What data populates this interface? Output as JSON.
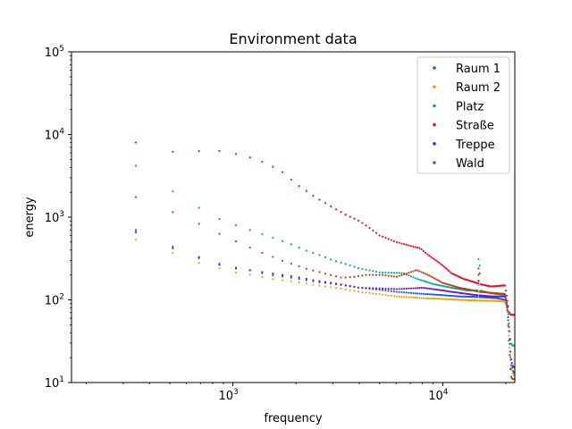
{
  "chart_data": {
    "type": "scatter",
    "title": "Environment data",
    "xlabel": "frequency",
    "ylabel": "energy",
    "xscale": "log",
    "yscale": "log",
    "xlim": [
      170,
      22050
    ],
    "ylim": [
      10,
      100000
    ],
    "xticks": [
      {
        "value": 1000,
        "base": "10",
        "exp": "3"
      },
      {
        "value": 10000,
        "base": "10",
        "exp": "4"
      }
    ],
    "yticks": [
      {
        "value": 10,
        "base": "10",
        "exp": "1"
      },
      {
        "value": 100,
        "base": "10",
        "exp": "2"
      },
      {
        "value": 1000,
        "base": "10",
        "exp": "3"
      },
      {
        "value": 10000,
        "base": "10",
        "exp": "4"
      },
      {
        "value": 100000,
        "base": "10",
        "exp": "5"
      }
    ],
    "grid": false,
    "legend_position": "top-right",
    "series": [
      {
        "name": "Raum 1",
        "color": "#1f5fd8",
        "anchors": [
          [
            344,
            700
          ],
          [
            517,
            440
          ],
          [
            689,
            330
          ],
          [
            861,
            275
          ],
          [
            1034,
            245
          ],
          [
            1500,
            200
          ],
          [
            2500,
            165
          ],
          [
            4000,
            140
          ],
          [
            6000,
            125
          ],
          [
            8000,
            118
          ],
          [
            12000,
            110
          ],
          [
            15000,
            108
          ],
          [
            18000,
            105
          ],
          [
            19800,
            100
          ],
          [
            20300,
            80
          ],
          [
            20700,
            40
          ],
          [
            21100,
            17
          ],
          [
            21500,
            14
          ],
          [
            22000,
            13
          ]
        ],
        "spikes": [
          [
            14900,
            160
          ]
        ]
      },
      {
        "name": "Raum 2",
        "color": "#e8a317",
        "anchors": [
          [
            344,
            540
          ],
          [
            517,
            370
          ],
          [
            689,
            280
          ],
          [
            861,
            240
          ],
          [
            1034,
            215
          ],
          [
            1500,
            180
          ],
          [
            2500,
            150
          ],
          [
            4000,
            125
          ],
          [
            6000,
            110
          ],
          [
            8000,
            105
          ],
          [
            12000,
            100
          ],
          [
            15000,
            98
          ],
          [
            18000,
            97
          ],
          [
            19800,
            95
          ],
          [
            20300,
            75
          ],
          [
            20700,
            35
          ],
          [
            21100,
            16
          ],
          [
            21500,
            13
          ],
          [
            22000,
            12
          ]
        ],
        "spikes": [
          [
            14900,
            150
          ]
        ]
      },
      {
        "name": "Platz",
        "color": "#0aa88a",
        "anchors": [
          [
            344,
            4200
          ],
          [
            517,
            2050
          ],
          [
            689,
            1300
          ],
          [
            861,
            950
          ],
          [
            1034,
            800
          ],
          [
            1300,
            650
          ],
          [
            1700,
            520
          ],
          [
            2200,
            400
          ],
          [
            3000,
            300
          ],
          [
            4000,
            240
          ],
          [
            5000,
            215
          ],
          [
            6500,
            210
          ],
          [
            7500,
            180
          ],
          [
            9000,
            155
          ],
          [
            11000,
            140
          ],
          [
            13000,
            130
          ],
          [
            15000,
            130
          ],
          [
            17000,
            120
          ],
          [
            19800,
            115
          ],
          [
            20300,
            90
          ],
          [
            20700,
            50
          ],
          [
            21100,
            30
          ],
          [
            21500,
            28
          ],
          [
            22000,
            28
          ]
        ],
        "spikes": [
          [
            14900,
            310
          ],
          [
            15050,
            260
          ]
        ]
      },
      {
        "name": "Straße",
        "color": "#e0142e",
        "anchors": [
          [
            344,
            8000
          ],
          [
            517,
            6200
          ],
          [
            689,
            6300
          ],
          [
            861,
            6300
          ],
          [
            1034,
            5800
          ],
          [
            1300,
            5000
          ],
          [
            1700,
            3600
          ],
          [
            2000,
            2500
          ],
          [
            2500,
            1700
          ],
          [
            3000,
            1300
          ],
          [
            3500,
            1050
          ],
          [
            4000,
            900
          ],
          [
            5000,
            600
          ],
          [
            6000,
            500
          ],
          [
            7000,
            450
          ],
          [
            7800,
            420
          ],
          [
            8500,
            350
          ],
          [
            10000,
            260
          ],
          [
            11000,
            210
          ],
          [
            12500,
            180
          ],
          [
            14000,
            165
          ],
          [
            15000,
            155
          ],
          [
            17000,
            145
          ],
          [
            19800,
            150
          ],
          [
            20300,
            100
          ],
          [
            20700,
            70
          ],
          [
            21100,
            66
          ],
          [
            22000,
            66
          ]
        ],
        "spikes": [
          [
            14900,
            240
          ],
          [
            15050,
            210
          ]
        ]
      },
      {
        "name": "Treppe",
        "color": "#6a1fa8",
        "anchors": [
          [
            344,
            660
          ],
          [
            517,
            420
          ],
          [
            689,
            320
          ],
          [
            861,
            265
          ],
          [
            1034,
            240
          ],
          [
            1500,
            210
          ],
          [
            2500,
            170
          ],
          [
            4000,
            140
          ],
          [
            6000,
            135
          ],
          [
            8000,
            140
          ],
          [
            11000,
            125
          ],
          [
            14000,
            115
          ],
          [
            17000,
            110
          ],
          [
            19800,
            110
          ],
          [
            20300,
            85
          ],
          [
            20700,
            45
          ],
          [
            21100,
            20
          ],
          [
            21500,
            16
          ],
          [
            22000,
            15
          ]
        ],
        "spikes": [
          [
            14900,
            170
          ]
        ]
      },
      {
        "name": "Wald",
        "color": "#a8481c",
        "anchors": [
          [
            344,
            1750
          ],
          [
            517,
            1150
          ],
          [
            689,
            830
          ],
          [
            861,
            630
          ],
          [
            1034,
            510
          ],
          [
            1300,
            390
          ],
          [
            1700,
            300
          ],
          [
            2200,
            240
          ],
          [
            2800,
            205
          ],
          [
            3300,
            185
          ],
          [
            3800,
            190
          ],
          [
            4300,
            200
          ],
          [
            5200,
            200
          ],
          [
            6000,
            190
          ],
          [
            7000,
            215
          ],
          [
            7500,
            230
          ],
          [
            8500,
            200
          ],
          [
            10000,
            160
          ],
          [
            12000,
            140
          ],
          [
            15000,
            125
          ],
          [
            18000,
            120
          ],
          [
            19800,
            118
          ],
          [
            20300,
            80
          ],
          [
            20700,
            30
          ],
          [
            21100,
            12
          ],
          [
            21500,
            11
          ],
          [
            22000,
            11
          ]
        ],
        "spikes": [
          [
            14900,
            200
          ]
        ]
      }
    ]
  }
}
